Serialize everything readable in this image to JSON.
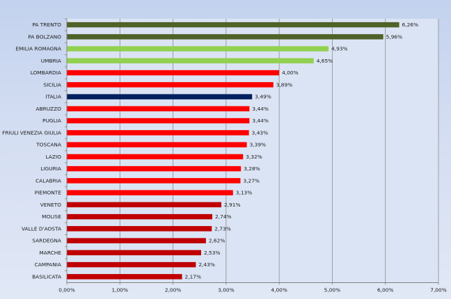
{
  "chart_data": {
    "type": "bar",
    "orientation": "horizontal",
    "title": "",
    "xlabel": "",
    "ylabel": "",
    "xlim": [
      0,
      7
    ],
    "grid": true,
    "legend": "none",
    "x_ticks": [
      "0,00%",
      "1,00%",
      "2,00%",
      "3,00%",
      "4,00%",
      "5,00%",
      "6,00%",
      "7,00%"
    ],
    "categories": [
      "PA TRENTO",
      "PA BOLZANO",
      "EMILIA ROMAGNA",
      "UMBRIA",
      "LOMBARDIA",
      "SICILIA",
      "ITALIA",
      "ABRUZZO",
      "PUGLIA",
      "FRIULI VENEZIA GIULIA",
      "TOSCANA",
      "LAZIO",
      "LIGURIA",
      "CALABRIA",
      "PIEMONTE",
      "VENETO",
      "MOLISE",
      "VALLE D'AOSTA",
      "SARDEGNA",
      "MARCHE",
      "CAMPANIA",
      "BASILICATA"
    ],
    "values": [
      6.26,
      5.96,
      4.93,
      4.65,
      4.0,
      3.89,
      3.49,
      3.44,
      3.44,
      3.43,
      3.39,
      3.32,
      3.28,
      3.27,
      3.13,
      2.91,
      2.74,
      2.73,
      2.62,
      2.53,
      2.43,
      2.17
    ],
    "value_labels": [
      "6,26%",
      "5,96%",
      "4,93%",
      "4,65%",
      "4,00%",
      "3,89%",
      "3,49%",
      "3,44%",
      "3,44%",
      "3,43%",
      "3,39%",
      "3,32%",
      "3,28%",
      "3,27%",
      "3,13%",
      "2,91%",
      "2,74%",
      "2,73%",
      "2,62%",
      "2,53%",
      "2,43%",
      "2,17%"
    ],
    "bar_colors": [
      "#4f6228",
      "#4f6228",
      "#92d050",
      "#92d050",
      "#ff0000",
      "#ff0000",
      "#002060",
      "#ff0000",
      "#ff0000",
      "#ff0000",
      "#ff0000",
      "#ff0000",
      "#ff0000",
      "#ff0000",
      "#ff0000",
      "#c00000",
      "#c00000",
      "#c00000",
      "#c00000",
      "#c00000",
      "#c00000",
      "#c00000"
    ],
    "colors": {
      "grid": "#8c8c8c",
      "axis": "#7f7f7f",
      "plot_background": "#dbe4f4"
    }
  }
}
